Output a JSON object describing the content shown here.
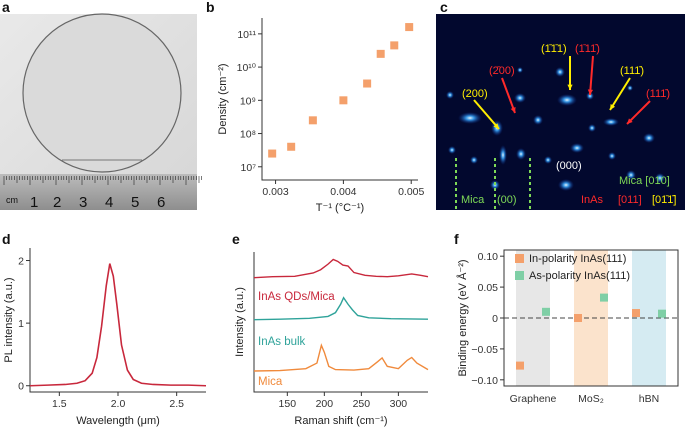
{
  "panel_labels": [
    "a",
    "b",
    "c",
    "d",
    "e",
    "f"
  ],
  "panel_a": {
    "ruler_unit": "cm",
    "ruler_numbers": [
      "1",
      "2",
      "3",
      "4",
      "5",
      "6"
    ]
  },
  "panel_c": {
    "labels": {
      "r200": "(200)",
      "rm200": "(2̄00)",
      "rm1m11": "(1̄1̄1)",
      "rm11m1": "(1̄11̄)",
      "r11m1": "(111̄)",
      "rright": "(111̄)",
      "r000": "(000)",
      "r00": "(00)",
      "mica_left": "Mica",
      "mica_right": "Mica [010]",
      "inas": "InAs",
      "zone_red": "[011]",
      "zone_yellow": "[01̄1̄]"
    },
    "colors": {
      "red": "#ff2a2a",
      "yellow": "#ffee00",
      "green": "#7ed957",
      "white": "#ffffff"
    }
  },
  "chart_data": [
    {
      "panel": "b",
      "type": "scatter",
      "xlabel": "T⁻¹ (°C⁻¹)",
      "ylabel": "Density (cm⁻²)",
      "yscale": "log",
      "xlim": [
        0.0028,
        0.0051
      ],
      "ylim": [
        4000000.0,
        300000000000.0
      ],
      "xticks": [
        0.003,
        0.004,
        0.005
      ],
      "xtick_labels": [
        "0.003",
        "0.004",
        "0.005"
      ],
      "yticks": [
        10000000.0,
        100000000.0,
        1000000000.0,
        10000000000.0,
        100000000000.0
      ],
      "ytick_labels": [
        "10⁷",
        "10⁸",
        "10⁹",
        "10¹⁰",
        "10¹¹"
      ],
      "x": [
        0.00295,
        0.00323,
        0.00355,
        0.004,
        0.00435,
        0.00455,
        0.00475,
        0.00497
      ],
      "y": [
        25000000.0,
        40000000.0,
        250000000.0,
        1000000000.0,
        3200000000.0,
        25000000000.0,
        45000000000.0,
        160000000000.0
      ],
      "color": "#f4a06b"
    },
    {
      "panel": "d",
      "type": "line",
      "xlabel": "Wavelength (μm)",
      "ylabel": "PL intensity (a.u.)",
      "xlim": [
        1.25,
        2.75
      ],
      "ylim": [
        -0.1,
        2.2
      ],
      "xticks": [
        1.5,
        2.0,
        2.5
      ],
      "xtick_labels": [
        "1.5",
        "2.0",
        "2.5"
      ],
      "yticks": [
        0,
        1,
        2
      ],
      "ytick_labels": [
        "0",
        "1",
        "2"
      ],
      "x": [
        1.25,
        1.4,
        1.55,
        1.65,
        1.72,
        1.78,
        1.82,
        1.86,
        1.9,
        1.93,
        1.96,
        1.99,
        2.03,
        2.08,
        2.13,
        2.2,
        2.3,
        2.45,
        2.6,
        2.75
      ],
      "y": [
        0.0,
        0.01,
        0.02,
        0.04,
        0.08,
        0.2,
        0.45,
        0.95,
        1.6,
        1.95,
        1.75,
        1.3,
        0.65,
        0.25,
        0.1,
        0.04,
        0.02,
        0.01,
        0.01,
        0.0
      ],
      "color": "#c8283c"
    },
    {
      "panel": "e",
      "type": "line",
      "xlabel": "Raman shift (cm⁻¹)",
      "ylabel": "Intensity (a.u.)",
      "xlim": [
        105,
        340
      ],
      "ylim": [
        0,
        3
      ],
      "xticks": [
        150,
        200,
        250,
        300
      ],
      "xtick_labels": [
        "150",
        "200",
        "250",
        "300"
      ],
      "series": [
        {
          "name": "InAs QDs/Mica",
          "color": "#c8283c",
          "x": [
            105,
            130,
            160,
            185,
            195,
            205,
            212,
            218,
            225,
            232,
            240,
            255,
            270,
            285,
            300,
            318,
            330,
            340
          ],
          "y": [
            2.45,
            2.47,
            2.48,
            2.55,
            2.62,
            2.74,
            2.84,
            2.8,
            2.72,
            2.7,
            2.56,
            2.5,
            2.48,
            2.47,
            2.49,
            2.53,
            2.5,
            2.47
          ]
        },
        {
          "name": "InAs bulk",
          "color": "#2fa39a",
          "x": [
            105,
            140,
            180,
            205,
            215,
            222,
            226,
            232,
            238,
            245,
            260,
            290,
            340
          ],
          "y": [
            1.55,
            1.56,
            1.58,
            1.62,
            1.7,
            1.88,
            2.02,
            1.88,
            1.76,
            1.64,
            1.59,
            1.57,
            1.56
          ]
        },
        {
          "name": "Mica",
          "color": "#f08a3c",
          "x": [
            105,
            140,
            175,
            190,
            196,
            200,
            206,
            215,
            240,
            260,
            272,
            278,
            285,
            300,
            312,
            318,
            325,
            340
          ],
          "y": [
            0.45,
            0.46,
            0.5,
            0.62,
            1.0,
            0.85,
            0.55,
            0.48,
            0.47,
            0.5,
            0.65,
            0.73,
            0.55,
            0.5,
            0.68,
            0.74,
            0.62,
            0.48
          ]
        }
      ]
    },
    {
      "panel": "f",
      "type": "scatter",
      "ylabel": "Binding energy (eV Å⁻²)",
      "categories": [
        "Graphene",
        "MoS₂",
        "hBN"
      ],
      "ylim": [
        -0.11,
        0.11
      ],
      "yticks": [
        -0.1,
        -0.05,
        0,
        0.05,
        0.1
      ],
      "ytick_labels": [
        "−0.10",
        "−0.05",
        "0",
        "0.05",
        "0.10"
      ],
      "series": [
        {
          "name": "In-polarity InAs(111)",
          "color": "#f4a06b",
          "values": [
            -0.077,
            0.0,
            0.008
          ]
        },
        {
          "name": "As-polarity InAs(111)",
          "color": "#7fcfa6",
          "values": [
            0.01,
            0.033,
            0.007
          ]
        }
      ],
      "band_colors": [
        "#e7e7e7",
        "#fbe3cc",
        "#d5ebf2"
      ]
    }
  ]
}
